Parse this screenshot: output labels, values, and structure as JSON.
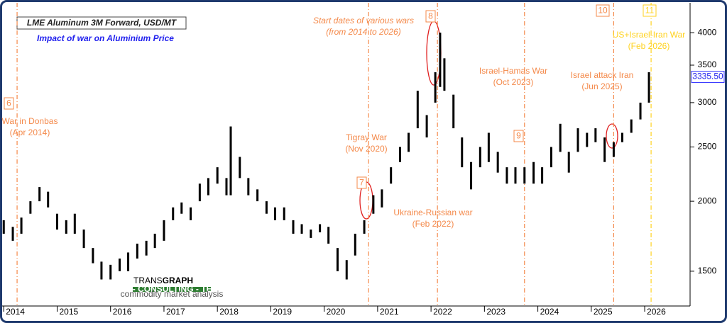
{
  "chart_data": {
    "type": "range-bar",
    "title": "LME Aluminum 3M Forward, USD/MT",
    "subtitle": "Impact of war on Aluminium Price",
    "annotation": [
      "Start dates of various wars",
      "(from 2014 to 2026)"
    ],
    "brand": {
      "name_light": "TRANS",
      "name_bold": "GRAPH",
      "tagline": "RESEARCH - CONSULTING - TECHNOLOGY",
      "sub": "commodity market analysis"
    },
    "log_y": true,
    "grid": false,
    "color": "#000000",
    "xlim": [
      2013.97,
      2026.85
    ],
    "xticks": [
      2014,
      2015,
      2016,
      2017,
      2018,
      2019,
      2020,
      2021,
      2022,
      2023,
      2024,
      2025,
      2026
    ],
    "ylim": [
      1300,
      4470
    ],
    "yticks": [
      1500,
      2000,
      2500,
      3000,
      3500,
      4000
    ],
    "x": [
      2014.0,
      2014.17,
      2014.33,
      2014.5,
      2014.67,
      2014.83,
      2015.0,
      2015.17,
      2015.33,
      2015.5,
      2015.67,
      2015.83,
      2016.0,
      2016.17,
      2016.33,
      2016.5,
      2016.67,
      2016.83,
      2017.0,
      2017.17,
      2017.33,
      2017.5,
      2017.67,
      2017.83,
      2018.0,
      2018.17,
      2018.25,
      2018.42,
      2018.58,
      2018.75,
      2018.92,
      2019.08,
      2019.25,
      2019.42,
      2019.58,
      2019.75,
      2019.92,
      2020.08,
      2020.25,
      2020.42,
      2020.58,
      2020.75,
      2020.92,
      2021.08,
      2021.25,
      2021.42,
      2021.58,
      2021.75,
      2021.92,
      2022.08,
      2022.17,
      2022.25,
      2022.42,
      2022.58,
      2022.75,
      2022.92,
      2023.08,
      2023.25,
      2023.42,
      2023.58,
      2023.75,
      2023.92,
      2024.08,
      2024.25,
      2024.42,
      2024.58,
      2024.75,
      2024.92,
      2025.08,
      2025.25,
      2025.42,
      2025.58,
      2025.75,
      2025.92,
      2026.08
    ],
    "high": [
      1850,
      1800,
      1870,
      2000,
      2120,
      2080,
      1900,
      1850,
      1900,
      1780,
      1650,
      1560,
      1540,
      1580,
      1620,
      1680,
      1700,
      1750,
      1850,
      1950,
      1990,
      1950,
      2150,
      2200,
      2300,
      2200,
      2720,
      2400,
      2200,
      2100,
      2000,
      1950,
      1950,
      1850,
      1820,
      1780,
      1820,
      1800,
      1650,
      1570,
      1750,
      1850,
      2050,
      2100,
      2300,
      2500,
      2650,
      3150,
      2850,
      3400,
      4000,
      3600,
      3100,
      2600,
      2350,
      2500,
      2650,
      2450,
      2300,
      2300,
      2300,
      2350,
      2300,
      2500,
      2750,
      2450,
      2700,
      2650,
      2700,
      2600,
      2550,
      2650,
      2800,
      3000,
      3400
    ],
    "low": [
      1750,
      1700,
      1750,
      1900,
      2000,
      1950,
      1780,
      1750,
      1750,
      1650,
      1550,
      1450,
      1450,
      1500,
      1500,
      1580,
      1600,
      1650,
      1700,
      1850,
      1900,
      1850,
      2000,
      2050,
      2150,
      2050,
      2050,
      2200,
      2050,
      2000,
      1900,
      1850,
      1850,
      1750,
      1750,
      1720,
      1760,
      1680,
      1500,
      1450,
      1600,
      1750,
      1900,
      1950,
      2150,
      2350,
      2450,
      2700,
      2600,
      3000,
      3200,
      3150,
      2700,
      2300,
      2100,
      2300,
      2350,
      2250,
      2150,
      2150,
      2150,
      2150,
      2150,
      2300,
      2450,
      2250,
      2450,
      2500,
      2550,
      2350,
      2400,
      2550,
      2650,
      2800,
      3000
    ],
    "last_price": {
      "value": 3335.5,
      "label": "3335.50"
    },
    "events": [
      {
        "marker": "6",
        "x": 2014.25,
        "color": "#f4894a",
        "text": [
          "War in Donbas",
          "(Apr 2014)"
        ]
      },
      {
        "marker": "7",
        "x": 2020.83,
        "color": "#f4894a",
        "text": [
          "Tigray War",
          "(Nov 2020)"
        ]
      },
      {
        "marker": "8",
        "x": 2022.12,
        "color": "#f4894a",
        "text": [
          "Ukraine-Russian war",
          "(Feb 2022)"
        ]
      },
      {
        "marker": "9",
        "x": 2023.75,
        "color": "#f4894a",
        "text": [
          "Israel-Hamas War",
          "(Oct 2023)"
        ]
      },
      {
        "marker": "10",
        "x": 2025.42,
        "color": "#f4894a",
        "text": [
          "Israel attack Iran",
          "(Jun 2025)"
        ]
      },
      {
        "marker": "11",
        "x": 2026.12,
        "color": "#ffd21f",
        "text": [
          "US+Israel-Iran War",
          "(Feb 2026)"
        ]
      }
    ]
  }
}
